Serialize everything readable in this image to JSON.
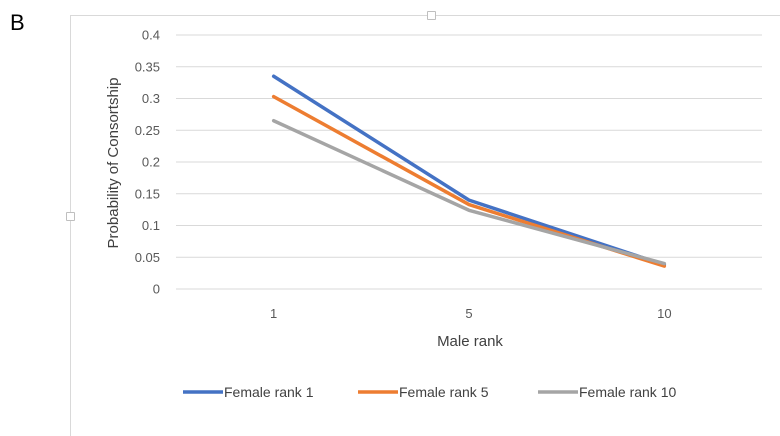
{
  "panel_label": "B",
  "chart_data": {
    "type": "line",
    "title": "",
    "xlabel": "Male rank",
    "ylabel": "Probability of Consortship",
    "categories": [
      "1",
      "5",
      "10"
    ],
    "ylim": [
      0,
      0.4
    ],
    "yticks": [
      "0",
      "0.05",
      "0.1",
      "0.15",
      "0.2",
      "0.25",
      "0.3",
      "0.35",
      "0.4"
    ],
    "grid": true,
    "legend_position": "bottom",
    "series": [
      {
        "name": "Female rank 1",
        "color": "#4472c4",
        "values": [
          0.335,
          0.14,
          0.038
        ]
      },
      {
        "name": "Female rank 5",
        "color": "#ed7d31",
        "values": [
          0.303,
          0.133,
          0.036
        ]
      },
      {
        "name": "Female rank 10",
        "color": "#a5a5a5",
        "values": [
          0.265,
          0.124,
          0.04
        ]
      }
    ]
  }
}
